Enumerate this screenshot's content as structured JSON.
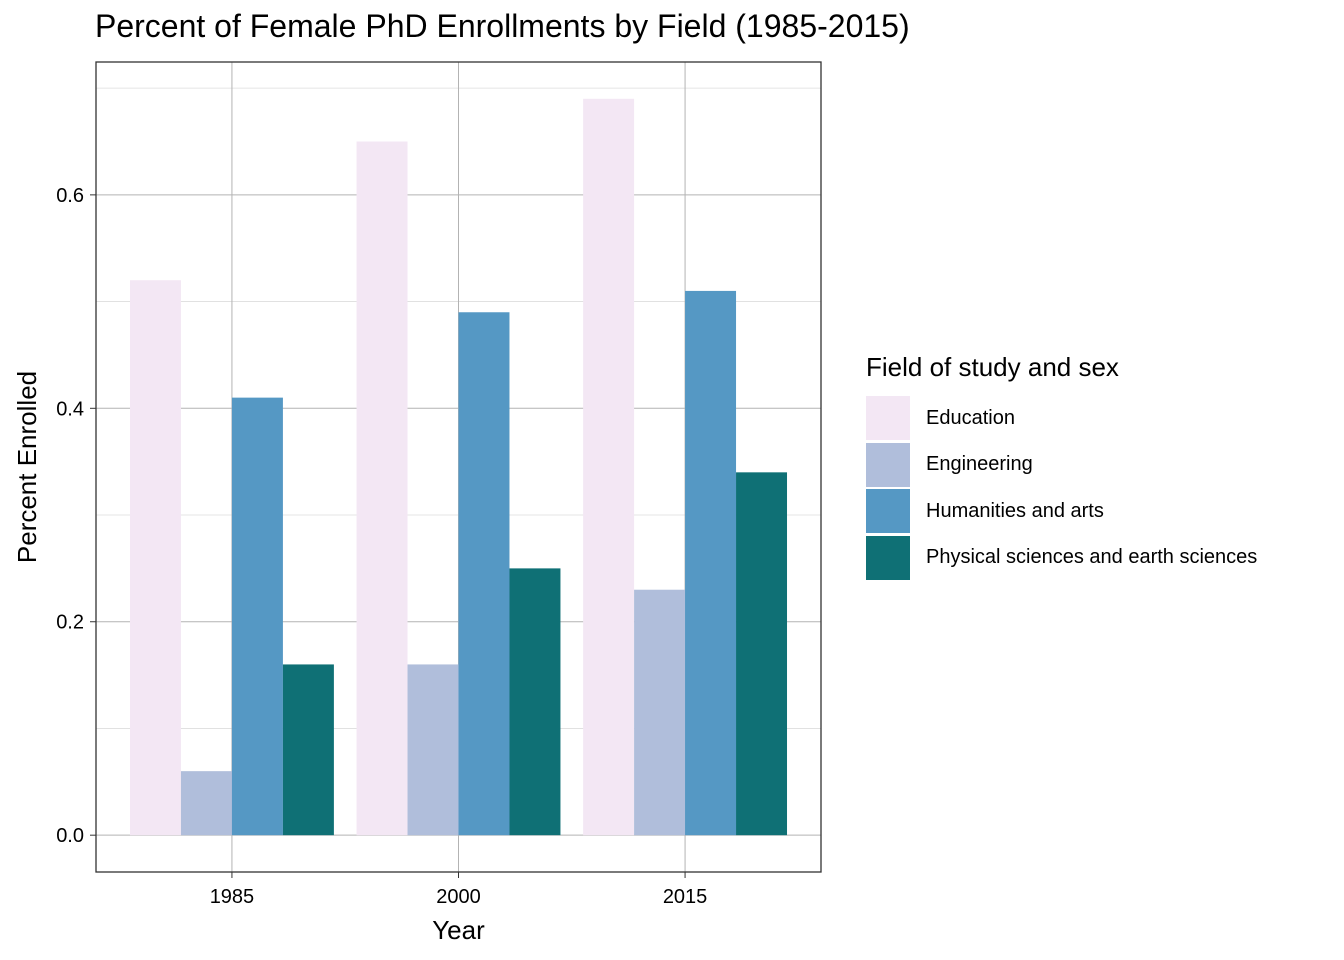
{
  "chart_data": {
    "type": "bar",
    "title": "Percent of Female PhD Enrollments by Field (1985-2015)",
    "xlabel": "Year",
    "ylabel": "Percent Enrolled",
    "categories": [
      "1985",
      "2000",
      "2015"
    ],
    "series": [
      {
        "name": "Education",
        "color": "#f3e7f4",
        "values": [
          0.52,
          0.65,
          0.69
        ]
      },
      {
        "name": "Engineering",
        "color": "#b0bedb",
        "values": [
          0.06,
          0.16,
          0.23
        ]
      },
      {
        "name": "Humanities and arts",
        "color": "#5598c4",
        "values": [
          0.41,
          0.49,
          0.51
        ]
      },
      {
        "name": "Physical sciences and earth sciences",
        "color": "#0f7075",
        "values": [
          0.16,
          0.25,
          0.34
        ]
      }
    ],
    "ylim": [
      -0.0345,
      0.7245
    ],
    "yticks": [
      0.0,
      0.2,
      0.4,
      0.6
    ],
    "ytick_labels": [
      "0.0",
      "0.2",
      "0.4",
      "0.6"
    ],
    "grid": true,
    "legend": {
      "title": "Field of study and sex",
      "position": "right"
    }
  }
}
